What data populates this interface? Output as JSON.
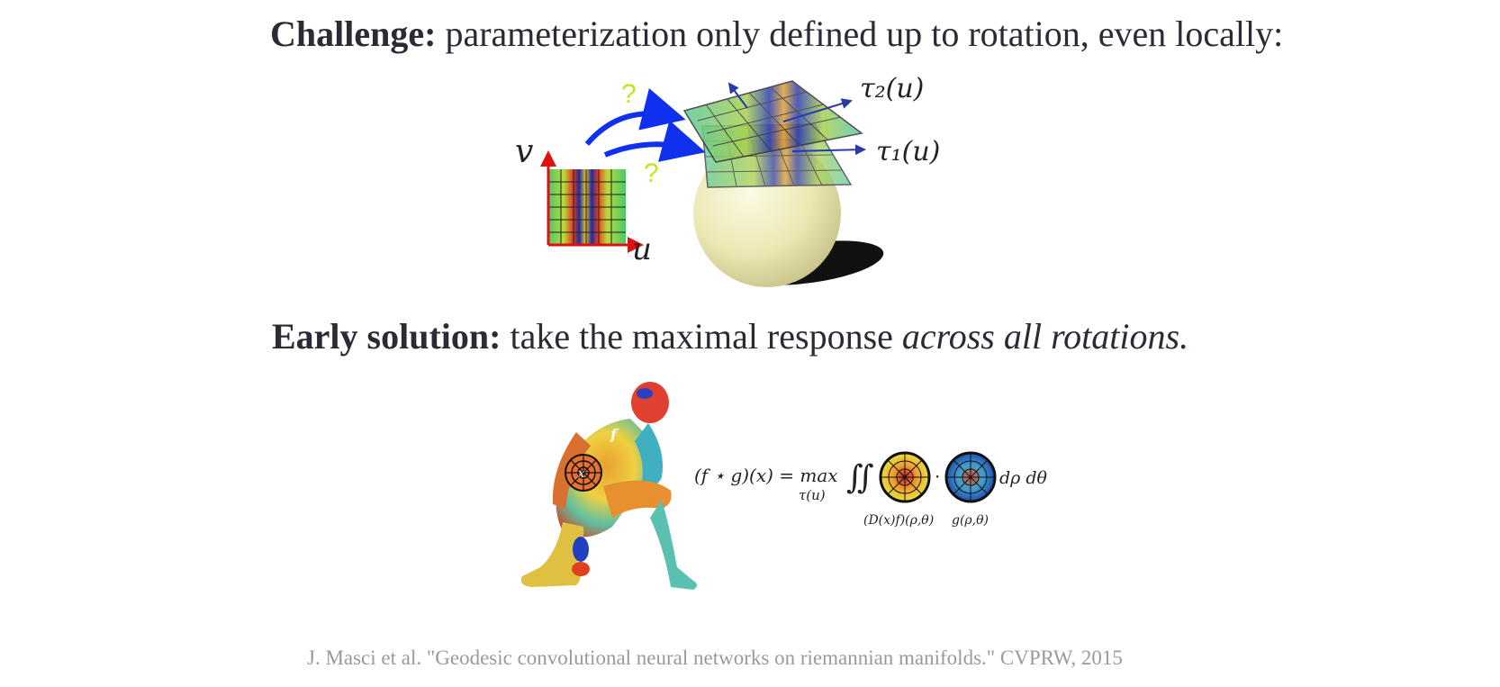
{
  "challenge": {
    "label": "Challenge:",
    "text": "parameterization only defined up to rotation, even locally:"
  },
  "diagram_top": {
    "axis_v": "v",
    "axis_u": "u",
    "question_1": "?",
    "question_2": "?",
    "tau2_label": "τ₂(u)",
    "tau1_label": "τ₁(u)"
  },
  "early_solution": {
    "label": "Early solution:",
    "text": "take the maximal response",
    "emphasis": "across all rotations."
  },
  "diagram_bottom": {
    "figure_f": "f",
    "figure_x": "x",
    "formula_lhs": "(f ⋆ g)(x) = max",
    "formula_sub": "τ(u)",
    "integral": "∬",
    "dot": "·",
    "differential": "dρ dθ",
    "label_patch": "(D(x)f)(ρ,θ)",
    "label_filter": "g(ρ,θ)"
  },
  "citation": "J. Masci et al. \"Geodesic convolutional neural networks on riemannian manifolds.\" CVPRW, 2015",
  "colors": {
    "text": "#2b2b35",
    "arrow_blue": "#1030f0",
    "axis_red": "#e01010",
    "question_yellow": "#c8e41a",
    "sphere": "#ece8b4",
    "citation_gray": "#9a9a9a"
  }
}
